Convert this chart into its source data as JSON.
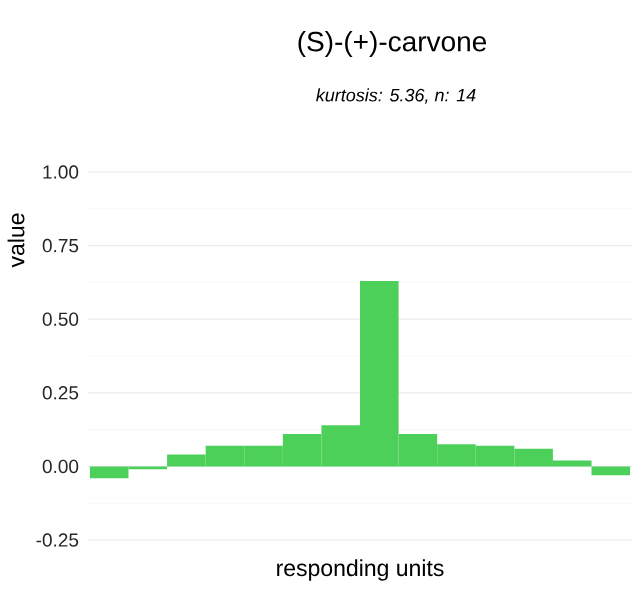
{
  "chart_data": {
    "type": "bar",
    "title": "(S)-(+)-carvone",
    "subtitle": "*kurtosis: 5.36, n: 14*",
    "xlabel": "responding units",
    "ylabel": "value",
    "categories": [
      null,
      null,
      null,
      null,
      null,
      null,
      null,
      null,
      null,
      null,
      null,
      null,
      null,
      null
    ],
    "values": [
      -0.04,
      -0.01,
      0.04,
      0.07,
      0.07,
      0.11,
      0.14,
      0.63,
      0.11,
      0.075,
      0.07,
      0.06,
      0.02,
      -0.03
    ],
    "color": "#4cd05a",
    "ylim": [
      -0.25,
      1
    ],
    "yticks": [
      {
        "value": -0.25,
        "label": "-0.25"
      },
      {
        "value": 0,
        "label": "0.00"
      },
      {
        "value": 0.25,
        "label": "0.25"
      },
      {
        "value": 0.5,
        "label": "0.50"
      },
      {
        "value": 0.75,
        "label": "0.75"
      },
      {
        "value": 1,
        "label": "1.00"
      }
    ],
    "grid": "y",
    "tick_labels": "y"
  }
}
